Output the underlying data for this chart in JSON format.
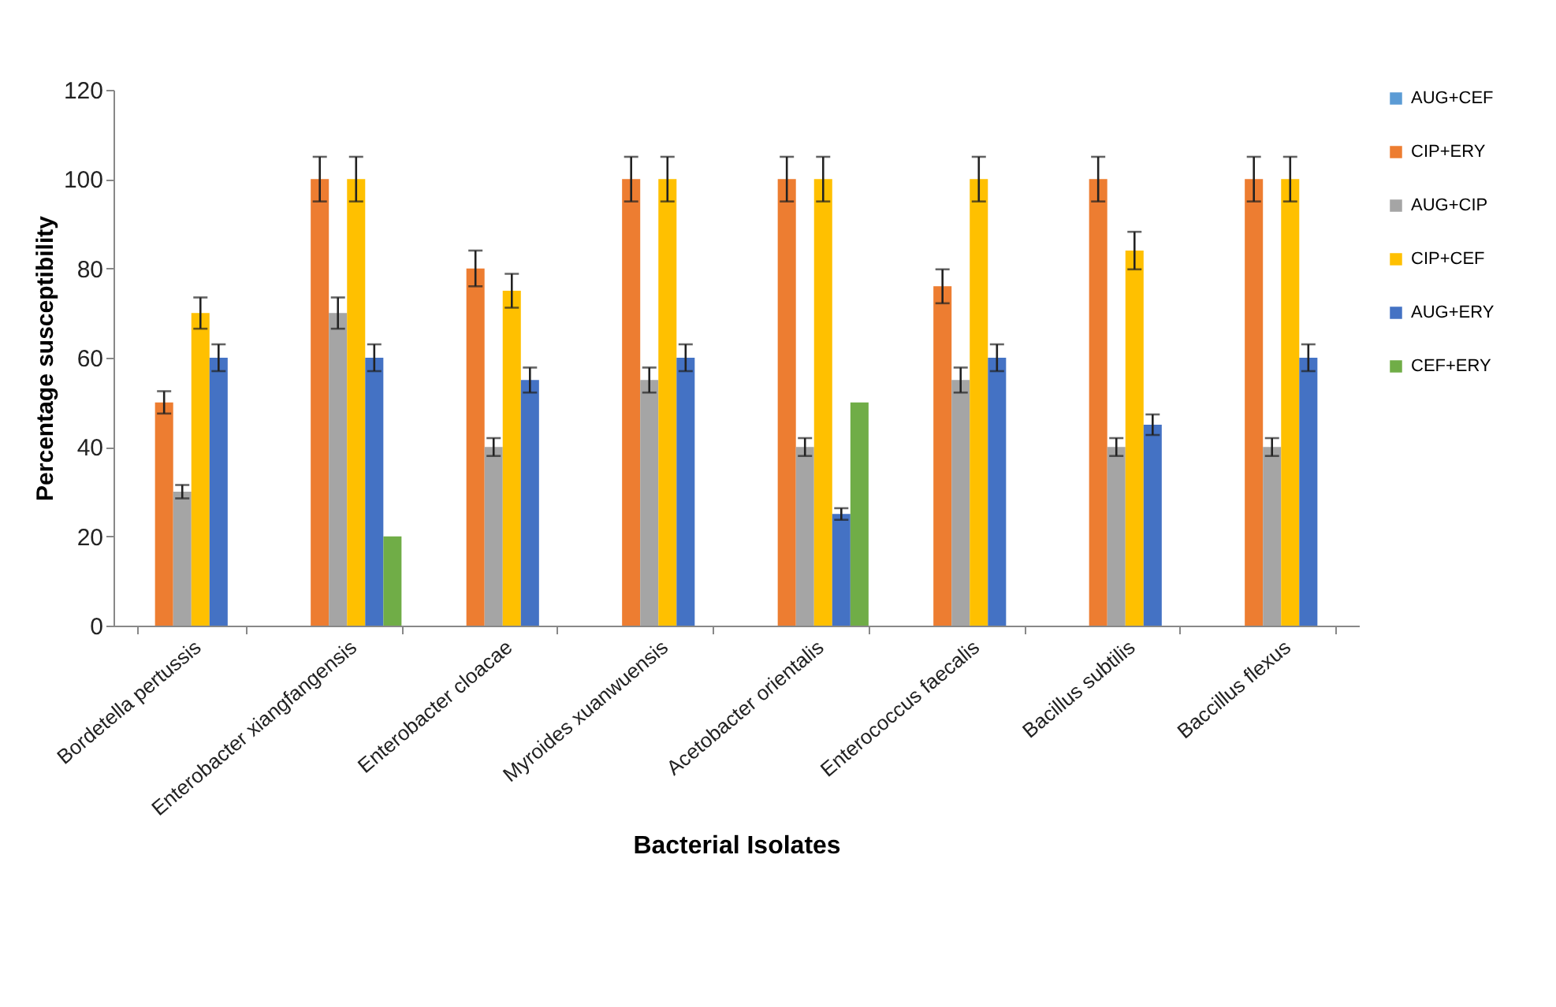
{
  "chart_data": {
    "type": "bar",
    "xlabel": "Bacterial Isolates",
    "ylabel": "Percentage susceptibility",
    "categories": [
      "Bordetella pertussis",
      "Enterobacter xiangfangensis",
      "Enterobacter cloacae",
      "Myroides xuanwuensis",
      "Acetobacter orientalis",
      "Enterococcus faecalis",
      "Bacillus subtilis",
      "Baccillus flexus"
    ],
    "series": [
      {
        "name": "AUG+CEF",
        "color": "#5b9bd5",
        "values": [
          0,
          0,
          0,
          0,
          0,
          0,
          0,
          0
        ]
      },
      {
        "name": "CIP+ERY",
        "color": "#ed7d31",
        "values": [
          50,
          100,
          80,
          100,
          100,
          76,
          100,
          100
        ],
        "errors": [
          2.5,
          5,
          4,
          5,
          5,
          3.8,
          5,
          5
        ]
      },
      {
        "name": "AUG+CIP",
        "color": "#a5a5a5",
        "values": [
          30,
          70,
          40,
          55,
          40,
          55,
          40,
          40
        ],
        "errors": [
          1.5,
          3.5,
          2,
          2.8,
          2,
          2.8,
          2,
          2
        ]
      },
      {
        "name": "CIP+CEF",
        "color": "#ffc000",
        "values": [
          70,
          100,
          75,
          100,
          100,
          100,
          84,
          100
        ],
        "errors": [
          3.5,
          5,
          3.8,
          5,
          5,
          5,
          4.2,
          5
        ]
      },
      {
        "name": "AUG+ERY",
        "color": "#4472c4",
        "values": [
          60,
          60,
          55,
          60,
          25,
          60,
          45,
          60
        ],
        "errors": [
          3,
          3,
          2.8,
          3,
          1.3,
          3,
          2.3,
          3
        ]
      },
      {
        "name": "CEF+ERY",
        "color": "#70ad47",
        "values": [
          0,
          20,
          0,
          0,
          50,
          0,
          0,
          0
        ]
      }
    ],
    "ylim": [
      0,
      120
    ],
    "yticks": [
      0,
      20,
      40,
      60,
      80,
      100,
      120
    ],
    "legend": "right"
  }
}
